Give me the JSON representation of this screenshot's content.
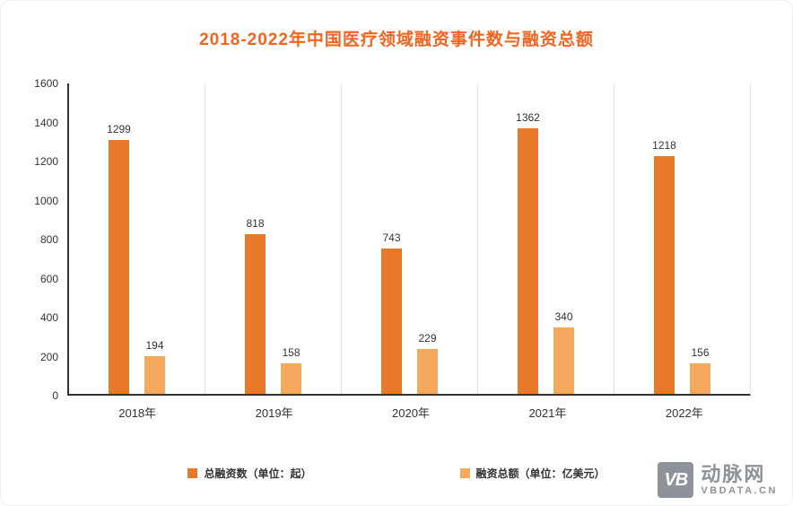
{
  "title": "2018-2022年中国医疗领域融资事件数与融资总额",
  "colors": {
    "title": "#F3641E",
    "axis": "#333333",
    "separator": "#E4E4E4",
    "primary_bar": "#E8782A",
    "secondary_bar": "#F6A95E",
    "logo_gray": "#8D9399"
  },
  "chart_data": {
    "type": "bar",
    "categories": [
      "2018年",
      "2019年",
      "2020年",
      "2021年",
      "2022年"
    ],
    "series": [
      {
        "name": "总融资数（单位：起）",
        "values": [
          1299,
          818,
          743,
          1362,
          1218
        ],
        "color": "#E8782A"
      },
      {
        "name": "融资总额（单位：亿美元）",
        "values": [
          194,
          158,
          229,
          340,
          156
        ],
        "color": "#F6A95E"
      }
    ],
    "title": "2018-2022年中国医疗领域融资事件数与融资总额",
    "xlabel": "",
    "ylabel": "",
    "ylim": [
      0,
      1600
    ],
    "ytick_step": 200,
    "grid": "vertical-group-separators",
    "legend_position": "bottom"
  },
  "logo": {
    "mark": "VB",
    "name": "动脉网",
    "domain": "VBDATA.CN"
  }
}
